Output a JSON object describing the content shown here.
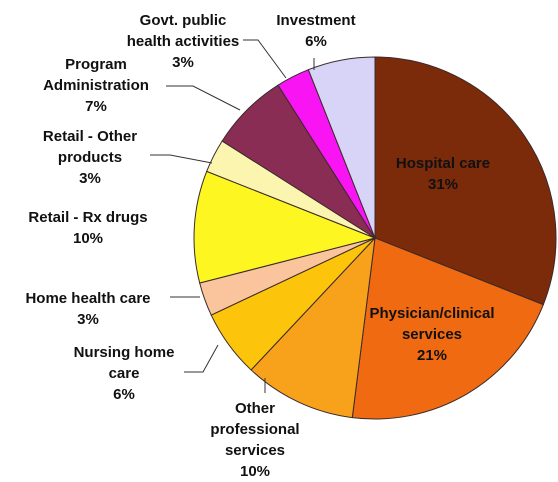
{
  "chart_data": {
    "type": "pie",
    "title": "",
    "start": "12 o'clock, clockwise",
    "slices": [
      {
        "label": "Hospital care",
        "value": 31,
        "value_label": "31%",
        "color": "#7b2a0a",
        "label_position": "inside"
      },
      {
        "label": "Physician/clinical services",
        "value": 21,
        "value_label": "21%",
        "color": "#ef6a10",
        "label_position": "inside"
      },
      {
        "label": "Other professional services",
        "value": 10,
        "value_label": "10%",
        "color": "#f7a21a",
        "label_position": "outside"
      },
      {
        "label": "Nursing home care",
        "value": 6,
        "value_label": "6%",
        "color": "#fcc50c",
        "label_position": "outside"
      },
      {
        "label": "Home health care",
        "value": 3,
        "value_label": "3%",
        "color": "#fac59c",
        "label_position": "outside"
      },
      {
        "label": "Retail - Rx drugs",
        "value": 10,
        "value_label": "10%",
        "color": "#fdf620",
        "label_position": "outside"
      },
      {
        "label": "Retail - Other products",
        "value": 3,
        "value_label": "3%",
        "color": "#fcf5b0",
        "label_position": "outside"
      },
      {
        "label": "Program Administration",
        "value": 7,
        "value_label": "7%",
        "color": "#8a2d55",
        "label_position": "outside"
      },
      {
        "label": "Govt. public health activities",
        "value": 3,
        "value_label": "3%",
        "color": "#f914f4",
        "label_position": "outside"
      },
      {
        "label": "Investment",
        "value": 6,
        "value_label": "6%",
        "color": "#d8d4f7",
        "label_position": "outside"
      }
    ]
  },
  "labels": [
    {
      "lines": [
        "Hospital care",
        "31%"
      ]
    },
    {
      "lines": [
        "Physician/clinical",
        "services",
        "21%"
      ]
    },
    {
      "lines": [
        "Other",
        "professional",
        "services",
        "10%"
      ]
    },
    {
      "lines": [
        "Nursing home",
        "care",
        "6%"
      ]
    },
    {
      "lines": [
        "Home health care",
        "3%"
      ]
    },
    {
      "lines": [
        "Retail - Rx drugs",
        "10%"
      ]
    },
    {
      "lines": [
        "Retail - Other",
        "products",
        "3%"
      ]
    },
    {
      "lines": [
        "Program",
        "Administration",
        "7%"
      ]
    },
    {
      "lines": [
        "Govt. public",
        "health activities",
        "3%"
      ]
    },
    {
      "lines": [
        "Investment",
        "6%"
      ]
    }
  ]
}
